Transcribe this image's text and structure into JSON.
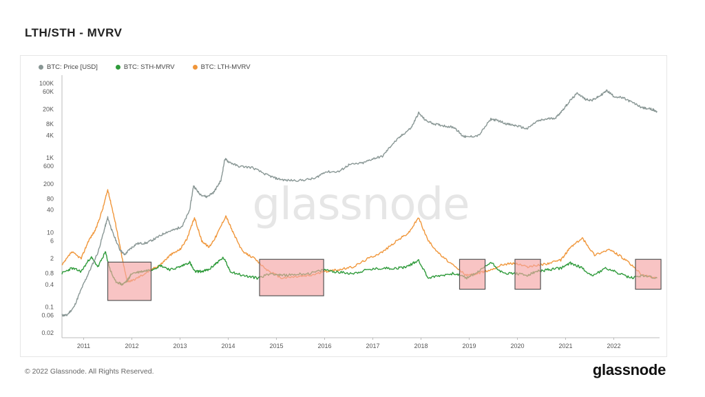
{
  "page": {
    "title": "LTH/STH - MVRV",
    "copyright": "© 2022 Glassnode. All Rights Reserved.",
    "logo": "glassnode",
    "watermark": "glassnode"
  },
  "colors": {
    "price": "#889694",
    "sth": "#2e9a3a",
    "lth": "#f0963a",
    "highlight_fill": "#f4a5a5",
    "highlight_stroke": "#555555"
  },
  "chart_data": {
    "type": "line",
    "title": "LTH/STH - MVRV",
    "xlabel": "",
    "ylabel": "",
    "y_scale": "log",
    "x_ticks": [
      "2011",
      "2012",
      "2013",
      "2014",
      "2015",
      "2016",
      "2017",
      "2018",
      "2019",
      "2020",
      "2021",
      "2022"
    ],
    "y_ticks": [
      "100K",
      "60K",
      "20K",
      "8K",
      "4K",
      "1K",
      "600",
      "200",
      "80",
      "40",
      "10",
      "6",
      "2",
      "0.8",
      "0.4",
      "0.1",
      "0.06",
      "0.02"
    ],
    "y_tick_values": [
      100000,
      60000,
      20000,
      8000,
      4000,
      1000,
      600,
      200,
      80,
      40,
      10,
      6,
      2,
      0.8,
      0.4,
      0.1,
      0.06,
      0.02
    ],
    "ylim": [
      0.015,
      140000
    ],
    "xlim": [
      2010.55,
      2022.95
    ],
    "grid": false,
    "legend": "top-left",
    "series": [
      {
        "name": "BTC: Price [USD]",
        "key": "price",
        "x": [
          2010.55,
          2010.65,
          2010.8,
          2010.95,
          2011.1,
          2011.3,
          2011.45,
          2011.5,
          2011.6,
          2011.75,
          2011.85,
          2011.95,
          2012.1,
          2012.3,
          2012.5,
          2012.7,
          2012.9,
          2013.05,
          2013.2,
          2013.28,
          2013.4,
          2013.55,
          2013.7,
          2013.85,
          2013.93,
          2014.0,
          2014.2,
          2014.5,
          2014.8,
          2015.0,
          2015.2,
          2015.5,
          2015.8,
          2016.0,
          2016.3,
          2016.5,
          2016.8,
          2017.0,
          2017.2,
          2017.4,
          2017.6,
          2017.8,
          2017.95,
          2018.1,
          2018.3,
          2018.5,
          2018.7,
          2018.85,
          2018.95,
          2019.2,
          2019.45,
          2019.6,
          2019.8,
          2020.0,
          2020.2,
          2020.4,
          2020.6,
          2020.8,
          2020.95,
          2021.1,
          2021.25,
          2021.4,
          2021.55,
          2021.7,
          2021.86,
          2022.0,
          2022.2,
          2022.4,
          2022.6,
          2022.8,
          2022.9
        ],
        "values": [
          0.06,
          0.06,
          0.1,
          0.3,
          0.8,
          3,
          15,
          25,
          10,
          3.5,
          2.5,
          3.5,
          5,
          5.2,
          7,
          10,
          12,
          15,
          40,
          180,
          110,
          90,
          120,
          250,
          950,
          800,
          600,
          550,
          350,
          280,
          250,
          250,
          280,
          420,
          430,
          650,
          730,
          950,
          1100,
          2300,
          4000,
          6500,
          16000,
          10000,
          8000,
          7200,
          6500,
          4000,
          3600,
          4000,
          11000,
          10000,
          8000,
          7200,
          6000,
          9500,
          11000,
          12000,
          20000,
          35000,
          55000,
          38000,
          35000,
          45000,
          64000,
          45000,
          40000,
          30000,
          22000,
          20000,
          17000
        ]
      },
      {
        "name": "BTC: STH-MVRV",
        "key": "sth",
        "x": [
          2010.55,
          2010.75,
          2010.95,
          2011.15,
          2011.3,
          2011.45,
          2011.55,
          2011.65,
          2011.8,
          2011.9,
          2012.0,
          2012.2,
          2012.4,
          2012.6,
          2012.8,
          2013.0,
          2013.2,
          2013.3,
          2013.45,
          2013.6,
          2013.75,
          2013.9,
          2014.05,
          2014.3,
          2014.6,
          2014.9,
          2015.1,
          2015.4,
          2015.7,
          2016.0,
          2016.3,
          2016.6,
          2016.9,
          2017.2,
          2017.5,
          2017.7,
          2017.95,
          2018.15,
          2018.4,
          2018.7,
          2018.95,
          2019.2,
          2019.45,
          2019.7,
          2019.95,
          2020.2,
          2020.4,
          2020.65,
          2020.9,
          2021.1,
          2021.3,
          2021.55,
          2021.85,
          2022.1,
          2022.35,
          2022.6,
          2022.9
        ],
        "values": [
          0.8,
          1.1,
          0.9,
          2.2,
          1.2,
          3.0,
          1.0,
          0.5,
          0.4,
          0.5,
          0.8,
          0.9,
          1.0,
          1.3,
          1.0,
          1.2,
          1.6,
          0.9,
          0.9,
          1.0,
          1.5,
          2.1,
          0.9,
          0.7,
          0.6,
          0.8,
          0.7,
          0.75,
          0.8,
          1.0,
          0.85,
          0.8,
          1.0,
          1.1,
          1.1,
          1.2,
          1.8,
          0.6,
          0.7,
          0.8,
          0.6,
          0.9,
          1.6,
          0.8,
          0.8,
          0.7,
          0.9,
          1.0,
          1.1,
          1.5,
          1.2,
          0.7,
          1.1,
          0.8,
          0.6,
          0.7,
          0.6
        ]
      },
      {
        "name": "BTC: LTH-MVRV",
        "key": "lth",
        "x": [
          2010.55,
          2010.75,
          2010.95,
          2011.1,
          2011.25,
          2011.4,
          2011.5,
          2011.6,
          2011.7,
          2011.8,
          2011.9,
          2012.0,
          2012.2,
          2012.4,
          2012.6,
          2012.8,
          2013.0,
          2013.15,
          2013.3,
          2013.45,
          2013.6,
          2013.75,
          2013.95,
          2014.1,
          2014.3,
          2014.5,
          2014.8,
          2015.1,
          2015.4,
          2015.7,
          2016.0,
          2016.3,
          2016.6,
          2016.9,
          2017.2,
          2017.5,
          2017.75,
          2017.95,
          2018.15,
          2018.4,
          2018.7,
          2018.95,
          2019.2,
          2019.45,
          2019.7,
          2019.95,
          2020.2,
          2020.4,
          2020.65,
          2020.9,
          2021.1,
          2021.35,
          2021.6,
          2021.9,
          2022.1,
          2022.35,
          2022.6,
          2022.9
        ],
        "values": [
          1.3,
          3,
          2,
          6,
          12,
          45,
          140,
          40,
          10,
          2,
          0.5,
          0.5,
          0.7,
          1.0,
          1.4,
          2.5,
          3.5,
          7,
          25,
          6,
          4,
          8,
          28,
          10,
          3,
          2.2,
          1.0,
          0.6,
          0.65,
          0.7,
          0.9,
          1.0,
          1.2,
          2.0,
          3.0,
          6,
          10,
          25,
          6,
          2.5,
          1.2,
          0.7,
          0.8,
          1.0,
          1.4,
          1.5,
          1.2,
          1.3,
          1.5,
          1.8,
          4,
          7,
          2.5,
          3.5,
          2.5,
          1.4,
          0.7,
          0.6
        ]
      }
    ],
    "highlights": [
      {
        "x0": 2011.5,
        "x1": 2012.4,
        "y0": 0.15,
        "y1": 1.6
      },
      {
        "x0": 2014.65,
        "x1": 2015.98,
        "y0": 0.2,
        "y1": 1.9
      },
      {
        "x0": 2018.8,
        "x1": 2019.33,
        "y0": 0.3,
        "y1": 1.9
      },
      {
        "x0": 2019.95,
        "x1": 2020.48,
        "y0": 0.3,
        "y1": 1.9
      },
      {
        "x0": 2022.45,
        "x1": 2022.98,
        "y0": 0.3,
        "y1": 1.9
      }
    ]
  }
}
